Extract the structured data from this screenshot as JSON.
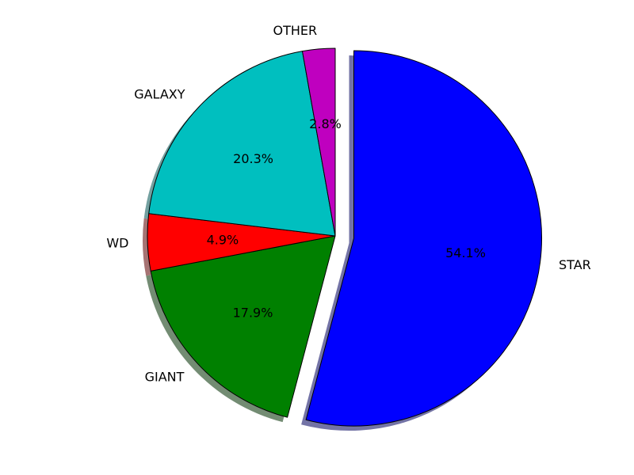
{
  "chart_data": {
    "type": "pie",
    "title": "",
    "start_angle_deg": 90,
    "direction": "clockwise",
    "shadow": true,
    "slices": [
      {
        "label": "STAR",
        "value": 54.1,
        "pct_text": "54.1%",
        "color": "#0000ff",
        "shadow_color": "#7373a6",
        "explode": 0.1
      },
      {
        "label": "GIANT",
        "value": 17.9,
        "pct_text": "17.9%",
        "color": "#008000",
        "shadow_color": "#738c73",
        "explode": 0
      },
      {
        "label": "WD",
        "value": 4.9,
        "pct_text": "4.9%",
        "color": "#ff0000",
        "shadow_color": "#a67373",
        "explode": 0
      },
      {
        "label": "GALAXY",
        "value": 20.3,
        "pct_text": "20.3%",
        "color": "#00bfbf",
        "shadow_color": "#73a0a0",
        "explode": 0
      },
      {
        "label": "OTHER",
        "value": 2.8,
        "pct_text": "2.8%",
        "color": "#bf00bf",
        "shadow_color": "#a073a0",
        "explode": 0
      }
    ]
  }
}
